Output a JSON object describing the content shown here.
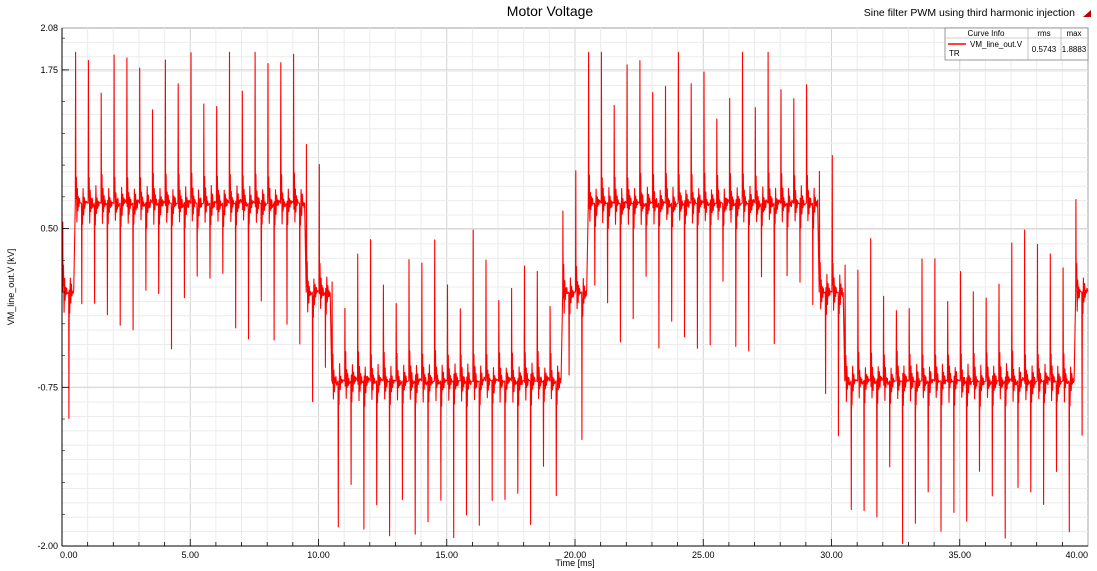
{
  "window": {
    "subtitle": "Sine filter PWM using third harmonic injection",
    "marker_color": "#c00000"
  },
  "chart_data": {
    "type": "line",
    "title": "Motor Voltage",
    "xlabel": "Time [ms]",
    "ylabel": "VM_line_out.V [kV]",
    "xlim": [
      0,
      40
    ],
    "ylim": [
      -2.0,
      2.08
    ],
    "x_ticks": [
      "0.00",
      "5.00",
      "10.00",
      "15.00",
      "20.00",
      "25.00",
      "30.00",
      "35.00",
      "40.00"
    ],
    "y_ticks": [
      "2.08",
      "1.75",
      "0.50",
      "-0.75",
      "-2.00"
    ],
    "grid": true,
    "line_color": "#ff0000",
    "series": [
      {
        "name": "VM_line_out.V",
        "waveform": "three-level PWM line voltage with third harmonic injection",
        "carrier_pulses": 80,
        "period_ms": 20,
        "min": -1.98,
        "max": 1.8883,
        "levels_kV": [
          -0.7,
          0.0,
          0.7
        ]
      }
    ],
    "legend": {
      "position": "top-right",
      "headers": [
        "Curve Info",
        "rms",
        "max"
      ],
      "rows": [
        {
          "tag": "TR",
          "name": "VM_line_out.V",
          "rms": "0.5743",
          "max": "1.8883"
        }
      ]
    }
  }
}
